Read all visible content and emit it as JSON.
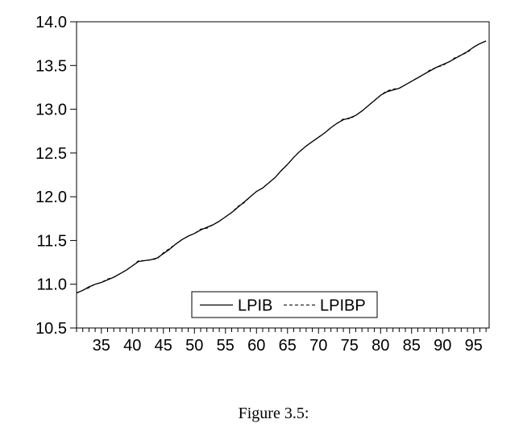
{
  "caption": {
    "text": "Figure 3.5:"
  },
  "colors": {
    "line": "#000000",
    "background": "#ffffff",
    "text": "#000000"
  },
  "legend": {
    "items": [
      {
        "label": "LPIB",
        "style": "solid"
      },
      {
        "label": "LPIBP",
        "style": "dashed"
      }
    ]
  },
  "chart_data": {
    "type": "line",
    "title": "",
    "xlabel": "",
    "ylabel": "",
    "xlim": [
      31,
      97.5
    ],
    "ylim": [
      10.5,
      14.0
    ],
    "grid": false,
    "legend_position": "bottom-center-inside",
    "x_tick_labels": [
      35,
      40,
      45,
      50,
      55,
      60,
      65,
      70,
      75,
      80,
      85,
      90,
      95
    ],
    "x_minor_tick_step": 1,
    "y_tick_labels": [
      "10.5",
      "11.0",
      "11.5",
      "12.0",
      "12.5",
      "13.0",
      "13.5",
      "14.0"
    ],
    "x": [
      31,
      32,
      33,
      34,
      35,
      36,
      37,
      38,
      39,
      40,
      41,
      42,
      43,
      44,
      45,
      46,
      47,
      48,
      49,
      50,
      51,
      52,
      53,
      54,
      55,
      56,
      57,
      58,
      59,
      60,
      61,
      62,
      63,
      64,
      65,
      66,
      67,
      68,
      69,
      70,
      71,
      72,
      73,
      74,
      75,
      76,
      77,
      78,
      79,
      80,
      81,
      82,
      83,
      84,
      85,
      86,
      87,
      88,
      89,
      90,
      91,
      92,
      93,
      94,
      95,
      96,
      97
    ],
    "series": [
      {
        "name": "LPIB",
        "line_style": "solid",
        "color": "#000000",
        "values": [
          10.9,
          10.93,
          10.97,
          11.0,
          11.02,
          11.05,
          11.08,
          11.12,
          11.16,
          11.21,
          11.26,
          11.27,
          11.28,
          11.3,
          11.35,
          11.4,
          11.46,
          11.51,
          11.55,
          11.58,
          11.62,
          11.65,
          11.68,
          11.72,
          11.77,
          11.82,
          11.88,
          11.94,
          12.0,
          12.06,
          12.1,
          12.16,
          12.22,
          12.3,
          12.37,
          12.45,
          12.52,
          12.58,
          12.63,
          12.68,
          12.73,
          12.79,
          12.84,
          12.88,
          12.9,
          12.93,
          12.98,
          13.04,
          13.1,
          13.16,
          13.2,
          13.22,
          13.24,
          13.28,
          13.32,
          13.36,
          13.4,
          13.44,
          13.48,
          13.51,
          13.54,
          13.58,
          13.62,
          13.66,
          13.71,
          13.75,
          13.78
        ]
      },
      {
        "name": "LPIBP",
        "line_style": "dashed",
        "color": "#000000",
        "values": [
          10.9,
          10.93,
          10.96,
          11.0,
          11.02,
          11.06,
          11.08,
          11.12,
          11.16,
          11.21,
          11.27,
          11.27,
          11.28,
          11.29,
          11.36,
          11.41,
          11.46,
          11.51,
          11.55,
          11.58,
          11.63,
          11.64,
          11.68,
          11.72,
          11.77,
          11.82,
          11.89,
          11.93,
          12.0,
          12.06,
          12.1,
          12.16,
          12.22,
          12.3,
          12.37,
          12.45,
          12.52,
          12.58,
          12.63,
          12.68,
          12.73,
          12.79,
          12.84,
          12.89,
          12.89,
          12.93,
          12.98,
          13.04,
          13.1,
          13.16,
          13.21,
          13.23,
          13.24,
          13.28,
          13.32,
          13.36,
          13.4,
          13.45,
          13.48,
          13.5,
          13.54,
          13.59,
          13.62,
          13.65,
          13.71,
          13.75,
          13.78
        ]
      }
    ]
  }
}
